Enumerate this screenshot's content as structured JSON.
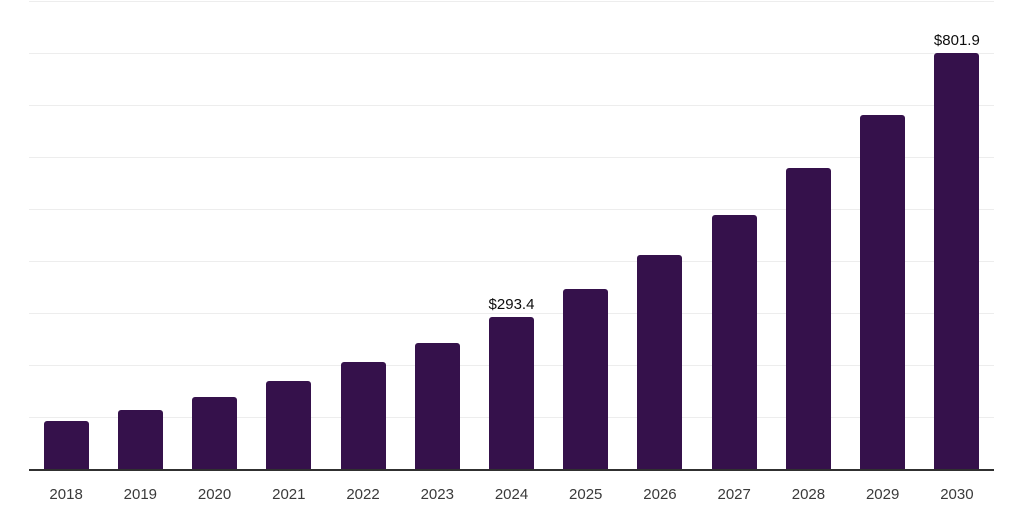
{
  "chart_data": {
    "type": "bar",
    "title": "",
    "xlabel": "",
    "ylabel": "",
    "categories": [
      "2018",
      "2019",
      "2020",
      "2021",
      "2022",
      "2023",
      "2024",
      "2025",
      "2026",
      "2027",
      "2028",
      "2029",
      "2030"
    ],
    "values": [
      95,
      116,
      141,
      171,
      207,
      245,
      293.4,
      348,
      414,
      491,
      581,
      683,
      801.9
    ],
    "data_labels": [
      {
        "category": "2024",
        "text": "$293.4"
      },
      {
        "category": "2030",
        "text": "$801.9"
      }
    ],
    "ylim": [
      0,
      900
    ],
    "gridline_interval": 100,
    "grid": true,
    "legend": false,
    "y_axis_labels_visible": false,
    "colors": {
      "bar": "#35114b",
      "grid": "#ededed",
      "axis": "#303030",
      "tick_label": "#3a3a3a",
      "data_label": "#0d0d0d",
      "background": "#ffffff"
    }
  }
}
